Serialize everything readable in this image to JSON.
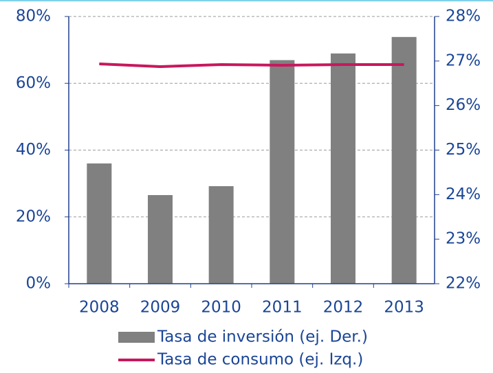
{
  "chart_data": {
    "type": "bar_line",
    "categories": [
      "2008",
      "2009",
      "2010",
      "2011",
      "2012",
      "2013"
    ],
    "series": [
      {
        "name": "Tasa de inversión (ej. Der.)",
        "type": "bar",
        "axis": "y2",
        "color": "#808080",
        "values": [
          24.7,
          23.99,
          24.19,
          27.02,
          27.17,
          27.54
        ]
      },
      {
        "name": "Tasa de consumo (ej. Izq.)",
        "type": "line",
        "axis": "y",
        "color": "#c8175d",
        "values": [
          65.8,
          65.0,
          65.6,
          65.4,
          65.6,
          65.6
        ]
      }
    ],
    "ylim": [
      0,
      80
    ],
    "yticks": [
      {
        "value": 0,
        "label": "0%"
      },
      {
        "value": 20,
        "label": "20%"
      },
      {
        "value": 40,
        "label": "40%"
      },
      {
        "value": 60,
        "label": "60%"
      },
      {
        "value": 80,
        "label": "80%"
      }
    ],
    "y2lim": [
      22,
      28
    ],
    "y2ticks": [
      {
        "value": 22,
        "label": "22%"
      },
      {
        "value": 23,
        "label": "23%"
      },
      {
        "value": 24,
        "label": "24%"
      },
      {
        "value": 25,
        "label": "25%"
      },
      {
        "value": 26,
        "label": "26%"
      },
      {
        "value": 27,
        "label": "27%"
      },
      {
        "value": 28,
        "label": "28%"
      }
    ],
    "grid": true
  }
}
